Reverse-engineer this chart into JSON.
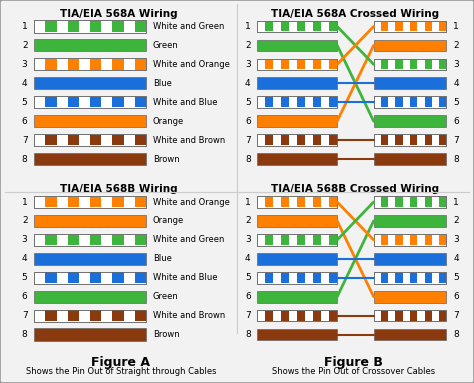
{
  "bg_color": "#f2f2f2",
  "border_color": "#aaaaaa",
  "t568a_wires": [
    {
      "label": "White and Green",
      "type": "striped",
      "color": "#3db53d"
    },
    {
      "label": "Green",
      "type": "solid",
      "color": "#3db53d"
    },
    {
      "label": "White and Orange",
      "type": "striped",
      "color": "#ff8000"
    },
    {
      "label": "Blue",
      "type": "solid",
      "color": "#1a6fdb"
    },
    {
      "label": "White and Blue",
      "type": "striped",
      "color": "#1a6fdb"
    },
    {
      "label": "Orange",
      "type": "solid",
      "color": "#ff8000"
    },
    {
      "label": "White and Brown",
      "type": "striped",
      "color": "#8b3a0f"
    },
    {
      "label": "Brown",
      "type": "solid",
      "color": "#8b3a0f"
    }
  ],
  "t568b_wires": [
    {
      "label": "White and Orange",
      "type": "striped",
      "color": "#ff8000"
    },
    {
      "label": "Orange",
      "type": "solid",
      "color": "#ff8000"
    },
    {
      "label": "White and Green",
      "type": "striped",
      "color": "#3db53d"
    },
    {
      "label": "Blue",
      "type": "solid",
      "color": "#1a6fdb"
    },
    {
      "label": "White and Blue",
      "type": "striped",
      "color": "#1a6fdb"
    },
    {
      "label": "Green",
      "type": "solid",
      "color": "#3db53d"
    },
    {
      "label": "White and Brown",
      "type": "striped",
      "color": "#8b3a0f"
    },
    {
      "label": "Brown",
      "type": "solid",
      "color": "#8b3a0f"
    }
  ],
  "t568a_cross_map": [
    2,
    5,
    0,
    3,
    4,
    1,
    6,
    7
  ],
  "t568b_cross_map": [
    2,
    5,
    0,
    3,
    4,
    1,
    6,
    7
  ],
  "fig_a_caption": "Figure A",
  "fig_b_caption": "Figure B",
  "bottom_a": "Shows the Pin Out of Straight through Cables",
  "bottom_b": "Shows the Pin Out of Crossover Cables"
}
